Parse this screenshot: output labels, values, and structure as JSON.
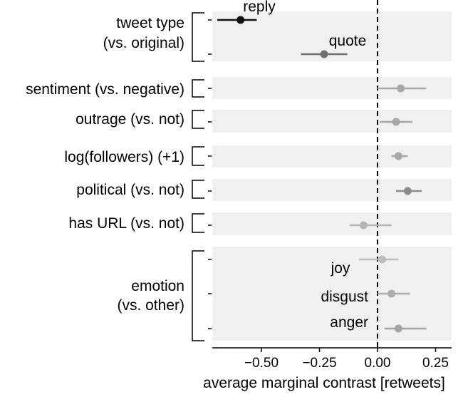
{
  "chart_data": {
    "type": "scatter",
    "xlabel": "average marginal contrast [retweets]",
    "xlim": [
      -0.75,
      0.25
    ],
    "xticks": [
      -0.5,
      -0.25,
      0.0,
      0.25
    ],
    "xtick_labels": [
      "−0.50",
      "−0.25",
      "0.00",
      "0.25"
    ],
    "reference_line_x": 0.0,
    "reference_line_style": "dashed",
    "groups": [
      {
        "label": "tweet type\n(vs. original)",
        "points": [
          {
            "label": "reply",
            "estimate": -0.59,
            "ci": [
              -0.69,
              -0.52
            ],
            "color": "#111111"
          },
          {
            "label": "quote",
            "estimate": -0.23,
            "ci": [
              -0.33,
              -0.13
            ],
            "color": "#6e6e6e"
          }
        ]
      },
      {
        "label": "sentiment (vs. negative)",
        "points": [
          {
            "label": "",
            "estimate": 0.1,
            "ci": [
              0.0,
              0.21
            ],
            "color": "#a8a8a8"
          }
        ]
      },
      {
        "label": "outrage (vs. not)",
        "points": [
          {
            "label": "",
            "estimate": 0.08,
            "ci": [
              0.01,
              0.15
            ],
            "color": "#a8a8a8"
          }
        ]
      },
      {
        "label": "log(followers) (+1)",
        "points": [
          {
            "label": "",
            "estimate": 0.09,
            "ci": [
              0.06,
              0.13
            ],
            "color": "#a8a8a8"
          }
        ]
      },
      {
        "label": "political (vs. not)",
        "points": [
          {
            "label": "",
            "estimate": 0.13,
            "ci": [
              0.08,
              0.19
            ],
            "color": "#8c8c8c"
          }
        ]
      },
      {
        "label": "has URL (vs. not)",
        "points": [
          {
            "label": "",
            "estimate": -0.06,
            "ci": [
              -0.12,
              0.06
            ],
            "color": "#b4b4b4"
          }
        ]
      },
      {
        "label": "emotion\n(vs. other)",
        "points": [
          {
            "label": "joy",
            "estimate": 0.02,
            "ci": [
              -0.08,
              0.09
            ],
            "color": "#bcbcbc"
          },
          {
            "label": "disgust",
            "estimate": 0.06,
            "ci": [
              0.0,
              0.14
            ],
            "color": "#adadad"
          },
          {
            "label": "anger",
            "estimate": 0.09,
            "ci": [
              0.03,
              0.21
            ],
            "color": "#a4a4a4"
          }
        ]
      }
    ]
  }
}
